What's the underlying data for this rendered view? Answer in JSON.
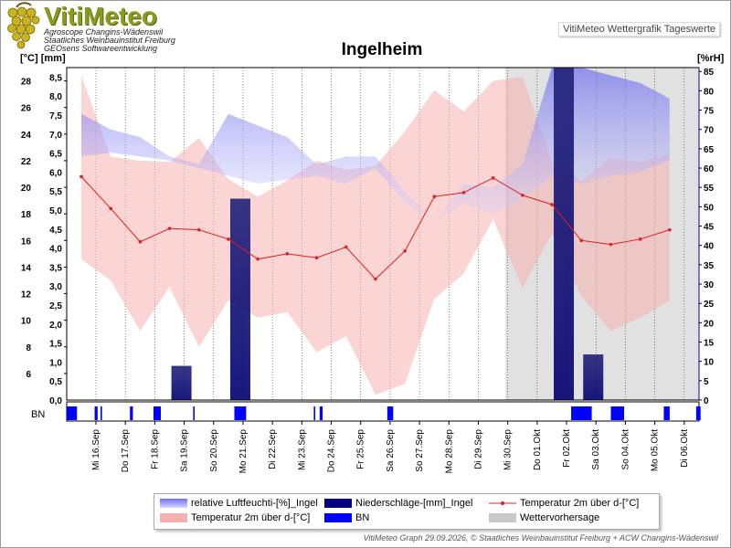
{
  "header": {
    "logo_title": "VitiMeteo",
    "logo_lines": [
      "Agroscope Changins-Wädenswil",
      "Staatliches Weinbauinstitut Freiburg",
      "GEOsens Softwareentwicklung"
    ],
    "subtitle": "VitiMeteo Wettergrafik Tageswerte"
  },
  "chart_data": {
    "type": "line",
    "title": "Ingelheim",
    "y_left_label": "[°C] [mm]",
    "y_right_label": "[%rH]",
    "temp_axis": {
      "min": 4,
      "max": 29,
      "ticks": [
        6,
        8,
        10,
        12,
        14,
        16,
        18,
        20,
        22,
        24,
        26,
        28
      ]
    },
    "precip_axis": {
      "min": 0,
      "max": 8.75,
      "ticks": [
        "0,0",
        "0,5",
        "1,0",
        "1,5",
        "2,0",
        "2,5",
        "3,0",
        "3,5",
        "4,0",
        "4,5",
        "5,0",
        "5,5",
        "6,0",
        "6,5",
        "7,0",
        "7,5",
        "8,0",
        "8,5"
      ]
    },
    "rh_axis": {
      "min": 0,
      "max": 86,
      "ticks": [
        0,
        5,
        10,
        15,
        20,
        25,
        30,
        35,
        40,
        45,
        50,
        55,
        60,
        65,
        70,
        75,
        80,
        85
      ]
    },
    "categories": [
      "Mi 16.Sep",
      "Do 17.Sep",
      "Fr 18.Sep",
      "Sa 19.Sep",
      "So 20.Sep",
      "Mo 21.Sep",
      "Di 22.Sep",
      "Mi 23.Sep",
      "Do 24.Sep",
      "Fr 25.Sep",
      "Sa 26.Sep",
      "So 27.Sep",
      "Mo 28.Sep",
      "Di 29.Sep",
      "Mi 30.Sep",
      "Do 01.Okt",
      "Fr 02.Okt",
      "Sa 03.Okt",
      "So 04.Okt",
      "Mo 05.Okt",
      "Di 06.Okt"
    ],
    "bn_label": "BN",
    "forecast_start_index": 14,
    "series": [
      {
        "name": "Temperatur 2m über d-[°C]",
        "kind": "line",
        "color": "#e02020",
        "values": [
          20.8,
          18.4,
          15.9,
          16.9,
          16.8,
          16.1,
          14.6,
          15.0,
          14.7,
          15.5,
          13.1,
          15.2,
          19.3,
          19.6,
          20.7,
          19.4,
          18.7,
          16.0,
          15.7,
          16.1,
          16.8
        ]
      },
      {
        "name": "Temperatur 2m über d-[°C]",
        "kind": "band",
        "color": "#f7b0b0",
        "min": [
          14.6,
          13.0,
          9.2,
          12.5,
          8.0,
          11.5,
          10.2,
          10.6,
          7.6,
          8.8,
          4.4,
          5.2,
          11.6,
          13.5,
          17.6,
          12.4,
          16.5,
          11.8,
          9.2,
          10.2,
          11.5
        ],
        "max": [
          28.4,
          22.3,
          22.0,
          21.9,
          23.7,
          20.6,
          19.3,
          20.5,
          22.0,
          21.3,
          21.6,
          24.2,
          27.3,
          25.7,
          28.0,
          28.3,
          21.9,
          20.5,
          22.2,
          21.9,
          22.5
        ]
      },
      {
        "name": "relative Luftfeuchti-[%]_Ingel",
        "kind": "band",
        "color": "#8080f0",
        "min": [
          63,
          64,
          63,
          62,
          60,
          58,
          56,
          57,
          58,
          56,
          60,
          51,
          46,
          51,
          48,
          52,
          58,
          56,
          58,
          59,
          62
        ],
        "max": [
          74,
          70,
          68,
          63,
          61,
          74,
          71,
          68,
          61,
          63,
          63,
          54,
          46,
          56,
          55,
          61,
          86,
          86,
          84,
          82,
          78
        ]
      },
      {
        "name": "Niederschläge-[mm]_Ingel",
        "kind": "bar",
        "color": "#000080",
        "values": [
          0,
          0,
          0,
          0.9,
          0,
          5.3,
          0,
          0,
          0,
          0,
          0,
          0,
          0,
          0,
          0,
          0,
          8.75,
          1.2,
          0,
          0,
          0
        ]
      },
      {
        "name": "BN",
        "kind": "marks",
        "color": "#0000ff",
        "ranges": [
          [
            0.0,
            0.35
          ],
          [
            0.95,
            1.05
          ],
          [
            1.15,
            1.2
          ],
          [
            2.15,
            2.25
          ],
          [
            2.95,
            3.2
          ],
          [
            4.3,
            4.35
          ],
          [
            5.7,
            6.1
          ],
          [
            8.4,
            8.45
          ],
          [
            8.6,
            8.7
          ],
          [
            10.9,
            11.1
          ],
          [
            17.15,
            17.85
          ],
          [
            18.5,
            18.95
          ],
          [
            20.3,
            20.5
          ],
          [
            21.4,
            21.55
          ]
        ]
      },
      {
        "name": "Wettervorhersage",
        "kind": "region",
        "color": "#c8c8c8"
      }
    ]
  },
  "legend": {
    "items": [
      {
        "label": "relative Luftfeuchti-[%]_Ingel",
        "color": "#8080f0"
      },
      {
        "label": "Niederschläge-[mm]_Ingel",
        "color": "#000080"
      },
      {
        "label": "Temperatur 2m über d-[°C]",
        "color": "#e02020"
      },
      {
        "label": "Temperatur 2m über d-[°C]",
        "color": "#f7b0b0"
      },
      {
        "label": "BN",
        "color": "#0000ff"
      },
      {
        "label": "Wettervorhersage",
        "color": "#c8c8c8"
      }
    ]
  },
  "footer": "VitiMeteo Graph 29.09.2026, © Staatliches Weinbauinstitut Freiburg + ACW Changins-Wädenswil"
}
